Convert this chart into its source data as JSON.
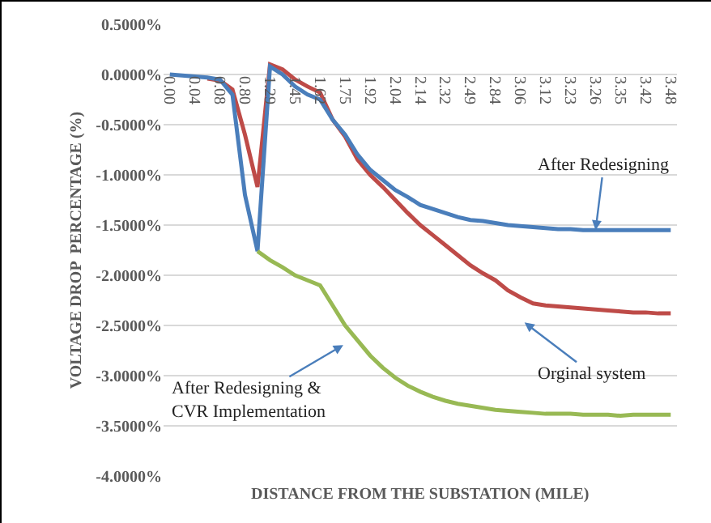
{
  "chart_data": {
    "type": "line",
    "xlabel": "DISTANCE FROM THE SUBSTATION (MILE)",
    "ylabel": "VOLTAGE DROP  PERCENTAGE (%)",
    "categories": [
      "0.00",
      null,
      "0.04",
      null,
      "0.08",
      null,
      "0.80",
      null,
      "1.29",
      null,
      "1.45",
      null,
      "1.62",
      null,
      "1.75",
      null,
      "1.92",
      null,
      "2.04",
      null,
      "2.14",
      null,
      "2.32",
      null,
      "2.49",
      null,
      "2.84",
      null,
      "3.06",
      null,
      "3.12",
      null,
      "3.23",
      null,
      "3.26",
      null,
      "3.35",
      null,
      "3.42",
      null,
      "3.48"
    ],
    "series": [
      {
        "color": "#be4b48",
        "values": [
          null,
          null,
          null,
          -0.04,
          -0.06,
          -0.15,
          -0.6,
          -1.12,
          0.1,
          0.05,
          -0.05,
          -0.12,
          -0.18,
          -0.45,
          -0.62,
          -0.85,
          -1.0,
          -1.12,
          -1.25,
          -1.38,
          -1.5,
          -1.6,
          -1.7,
          -1.8,
          -1.9,
          -1.98,
          -2.05,
          -2.15,
          -2.22,
          -2.28,
          -2.3,
          -2.31,
          -2.32,
          -2.33,
          -2.34,
          -2.35,
          -2.36,
          -2.37,
          -2.37,
          -2.38,
          -2.38
        ]
      },
      {
        "color": "#4a7ebb",
        "values": [
          0,
          -0.01,
          -0.02,
          -0.03,
          -0.05,
          -0.2,
          -1.2,
          -1.76,
          0.08,
          0,
          -0.12,
          -0.2,
          -0.25,
          -0.45,
          -0.6,
          -0.8,
          -0.95,
          -1.05,
          -1.15,
          -1.22,
          -1.3,
          -1.34,
          -1.38,
          -1.42,
          -1.45,
          -1.46,
          -1.48,
          -1.5,
          -1.51,
          -1.52,
          -1.53,
          -1.54,
          -1.54,
          -1.55,
          -1.55,
          -1.55,
          -1.55,
          -1.55,
          -1.55,
          -1.55,
          -1.55
        ]
      },
      {
        "color": "#98b954",
        "values": [
          null,
          null,
          null,
          null,
          null,
          null,
          null,
          -1.76,
          -1.85,
          -1.92,
          -2.0,
          -2.05,
          -2.1,
          -2.3,
          -2.5,
          -2.65,
          -2.8,
          -2.92,
          -3.02,
          -3.1,
          -3.16,
          -3.21,
          -3.25,
          -3.28,
          -3.3,
          -3.32,
          -3.34,
          -3.35,
          -3.36,
          -3.37,
          -3.38,
          -3.38,
          -3.38,
          -3.39,
          -3.39,
          -3.39,
          -3.4,
          -3.39,
          -3.39,
          -3.39,
          -3.39
        ]
      }
    ],
    "ylim": [
      -4,
      0.5
    ],
    "yticks": [
      {
        "value": 0.5,
        "label": "0.5000%"
      },
      {
        "value": 0,
        "label": "0.0000%"
      },
      {
        "value": -0.5,
        "label": "-0.5000%"
      },
      {
        "value": -1,
        "label": "-1.0000%"
      },
      {
        "value": -1.5,
        "label": "-1.5000%"
      },
      {
        "value": -2,
        "label": "-2.0000%"
      },
      {
        "value": -2.5,
        "label": "-2.5000%"
      },
      {
        "value": -3,
        "label": "-3.0000%"
      },
      {
        "value": -3.5,
        "label": "-3.5000%"
      },
      {
        "value": -4,
        "label": "-4.0000%"
      }
    ],
    "grid": "y",
    "line_style": "solid",
    "annotations": [
      {
        "text": "After Redesigning",
        "x": "3.26",
        "y": -1.55
      },
      "Orginal system",
      "After Redesigning &\nCVR Implementation"
    ]
  }
}
